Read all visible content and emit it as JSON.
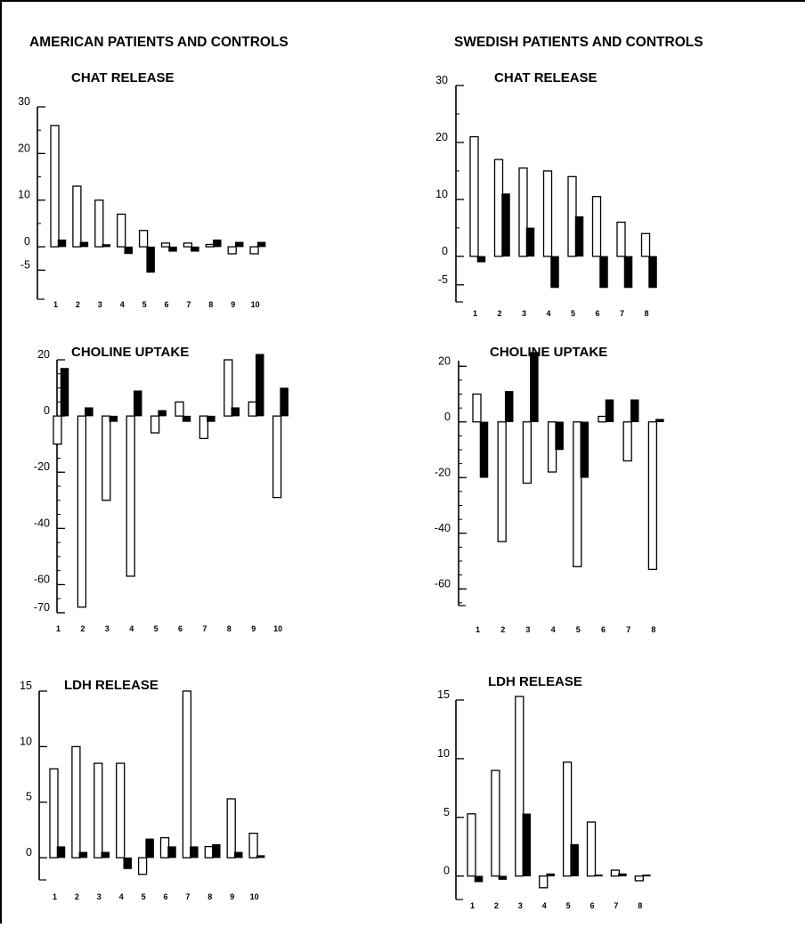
{
  "columns": [
    {
      "heading": "AMERICAN PATIENTS AND CONTROLS"
    },
    {
      "heading": "SWEDISH PATIENTS AND CONTROLS"
    }
  ],
  "chart_data": [
    {
      "type": "bar",
      "column": 0,
      "title": "CHAT RELEASE",
      "xlabel": "",
      "ylabel": "",
      "categories": [
        "1",
        "2",
        "3",
        "4",
        "5",
        "6",
        "7",
        "8",
        "9",
        "10"
      ],
      "ylim": [
        -8,
        30
      ],
      "yticks": [
        {
          "value": 30,
          "label": "30"
        },
        {
          "value": 20,
          "label": "20"
        },
        {
          "value": 10,
          "label": "10"
        },
        {
          "value": 0,
          "label": "0"
        },
        {
          "value": -5,
          "label": "-5"
        }
      ],
      "series": [
        {
          "fill": "#ffffff",
          "values": [
            26,
            13,
            10,
            7,
            3.5,
            0.8,
            0.8,
            0.5,
            -1.5,
            -1.5
          ]
        },
        {
          "fill": "#000000",
          "values": [
            1.5,
            1,
            0.5,
            -1.5,
            -5.5,
            -1,
            -1,
            1.5,
            1,
            1
          ]
        }
      ]
    },
    {
      "type": "bar",
      "column": 0,
      "title": "CHOLINE UPTAKE",
      "xlabel": "",
      "ylabel": "",
      "categories": [
        "1",
        "2",
        "3",
        "4",
        "5",
        "6",
        "7",
        "8",
        "9",
        "10"
      ],
      "ylim": [
        -70,
        20
      ],
      "yticks": [
        {
          "value": 20,
          "label": "20"
        },
        {
          "value": 0,
          "label": "0"
        },
        {
          "value": -20,
          "label": "-20"
        },
        {
          "value": -40,
          "label": "-40"
        },
        {
          "value": -60,
          "label": "-60"
        },
        {
          "value": -70,
          "label": "-70"
        }
      ],
      "series": [
        {
          "fill": "#ffffff",
          "values": [
            -10,
            -68,
            -30,
            -57,
            -6,
            5,
            -8,
            20,
            5,
            -29
          ]
        },
        {
          "fill": "#000000",
          "values": [
            17,
            3,
            -2,
            9,
            2,
            -2,
            -2,
            3,
            22,
            10
          ]
        }
      ]
    },
    {
      "type": "bar",
      "column": 0,
      "title": "LDH RELEASE",
      "xlabel": "",
      "ylabel": "",
      "categories": [
        "1",
        "2",
        "3",
        "4",
        "5",
        "6",
        "7",
        "8",
        "9",
        "10"
      ],
      "ylim": [
        -2,
        15
      ],
      "yticks": [
        {
          "value": 15,
          "label": "15"
        },
        {
          "value": 10,
          "label": "10"
        },
        {
          "value": 5,
          "label": "5"
        },
        {
          "value": 0,
          "label": "0"
        }
      ],
      "series": [
        {
          "fill": "#ffffff",
          "values": [
            8,
            10,
            8.5,
            8.5,
            -1.5,
            1.8,
            15,
            1,
            5.3,
            2.2
          ]
        },
        {
          "fill": "#000000",
          "values": [
            1,
            0.5,
            0.5,
            -1,
            1.7,
            1,
            1,
            1.2,
            0.5,
            0.2
          ]
        }
      ]
    },
    {
      "type": "bar",
      "column": 1,
      "title": "CHAT RELEASE",
      "xlabel": "",
      "ylabel": "",
      "categories": [
        "1",
        "2",
        "3",
        "4",
        "5",
        "6",
        "7",
        "8"
      ],
      "ylim": [
        -8,
        30
      ],
      "yticks": [
        {
          "value": 30,
          "label": "30"
        },
        {
          "value": 20,
          "label": "20"
        },
        {
          "value": 10,
          "label": "10"
        },
        {
          "value": 0,
          "label": "0"
        },
        {
          "value": -5,
          "label": "-5"
        }
      ],
      "series": [
        {
          "fill": "#ffffff",
          "values": [
            21,
            17,
            15.5,
            15,
            14,
            10.5,
            6,
            4
          ]
        },
        {
          "fill": "#000000",
          "values": [
            -1,
            11,
            5,
            -5.5,
            7,
            -5.5,
            -5.5,
            -5.5
          ]
        }
      ]
    },
    {
      "type": "bar",
      "column": 1,
      "title": "CHOLINE UPTAKE",
      "xlabel": "",
      "ylabel": "",
      "categories": [
        "1",
        "2",
        "3",
        "4",
        "5",
        "6",
        "7",
        "8"
      ],
      "ylim": [
        -66,
        22
      ],
      "yticks": [
        {
          "value": 20,
          "label": "20"
        },
        {
          "value": 0,
          "label": "0"
        },
        {
          "value": -20,
          "label": "-20"
        },
        {
          "value": -40,
          "label": "-40"
        },
        {
          "value": -60,
          "label": "-60"
        }
      ],
      "series": [
        {
          "fill": "#ffffff",
          "values": [
            10,
            -43,
            -22,
            -18,
            -52,
            2,
            -14,
            -53
          ]
        },
        {
          "fill": "#000000",
          "values": [
            -20,
            11,
            25,
            -10,
            -20,
            8,
            8,
            1
          ]
        }
      ]
    },
    {
      "type": "bar",
      "column": 1,
      "title": "LDH RELEASE",
      "xlabel": "",
      "ylabel": "",
      "categories": [
        "1",
        "2",
        "3",
        "4",
        "5",
        "6",
        "7",
        "8"
      ],
      "ylim": [
        -2,
        15
      ],
      "yticks": [
        {
          "value": 15,
          "label": "15"
        },
        {
          "value": 10,
          "label": "10"
        },
        {
          "value": 5,
          "label": "5"
        },
        {
          "value": 0,
          "label": "0"
        }
      ],
      "series": [
        {
          "fill": "#ffffff",
          "values": [
            5.3,
            9,
            15.3,
            -1,
            9.7,
            4.6,
            0.5,
            -0.4
          ]
        },
        {
          "fill": "#000000",
          "values": [
            -0.5,
            -0.3,
            5.3,
            0.2,
            2.7,
            0.1,
            0.2,
            0.1
          ]
        }
      ]
    }
  ]
}
